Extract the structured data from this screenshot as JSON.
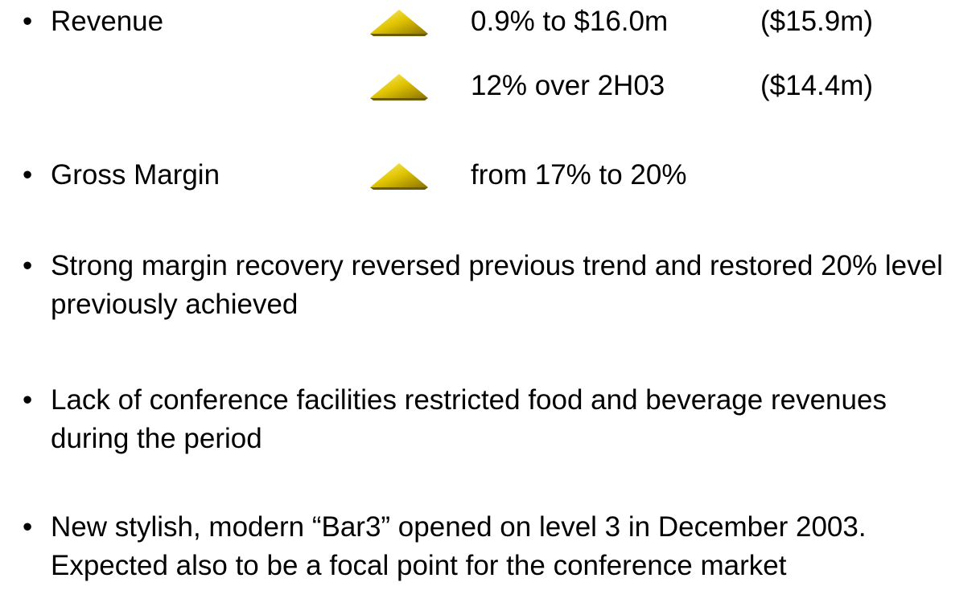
{
  "bullets": [
    {
      "label": "Revenue",
      "items": [
        {
          "text": "0.9% to $16.0m",
          "note": "($15.9m)"
        },
        {
          "text": "12% over 2H03",
          "note": "($14.4m)"
        }
      ]
    },
    {
      "label": "Gross Margin",
      "items": [
        {
          "text": "from 17% to 20%"
        }
      ]
    },
    {
      "text": "Strong margin recovery reversed previous trend and restored 20% level previously achieved"
    },
    {
      "text": "Lack of conference facilities restricted food and beverage revenues during the period"
    },
    {
      "text": "New stylish, modern “Bar3” opened on level 3 in December 2003.  Expected also to be a focal point for the conference market"
    }
  ]
}
